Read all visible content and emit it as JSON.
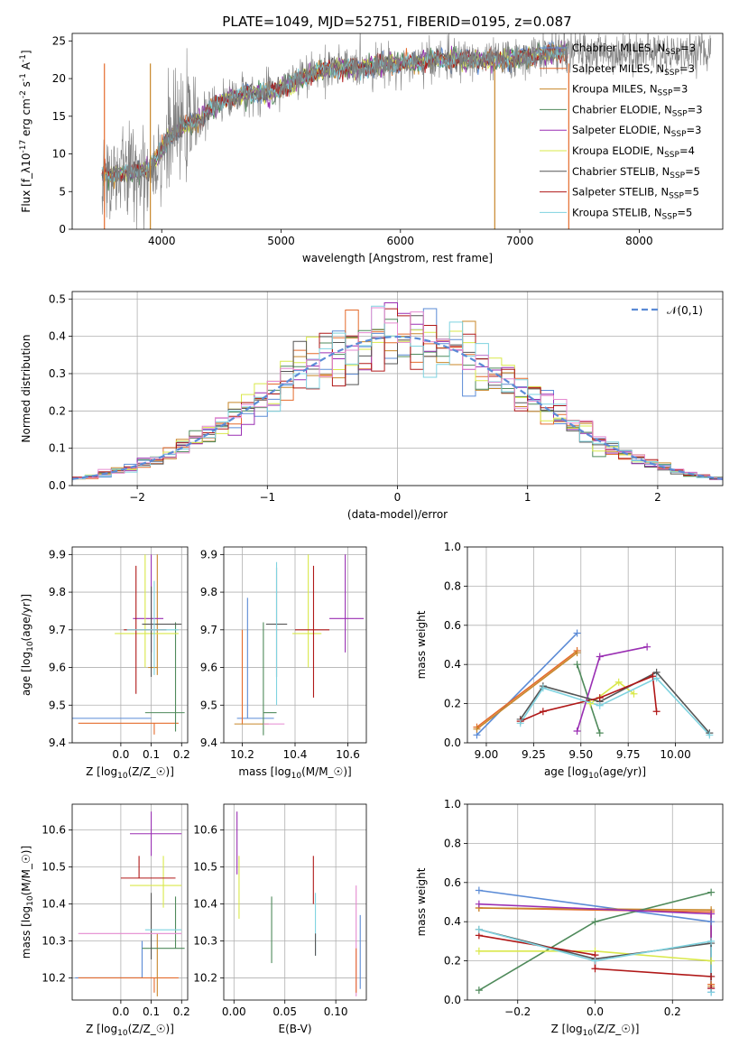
{
  "title": "PLATE=1049, MJD=52751, FIBERID=0195, z=0.087",
  "colors": {
    "chabrier_miles": "#5b8bd6",
    "salpeter_miles": "#e46b2c",
    "kroupa_miles": "#c8872a",
    "chabrier_elodie": "#4f8a5b",
    "salpeter_elodie": "#9a2fb3",
    "kroupa_elodie": "#d9e84a",
    "chabrier_stelib": "#555555",
    "salpeter_stelib": "#b01818",
    "kroupa_stelib": "#7fd3e0",
    "normal": "#5b8bd6",
    "pink": "#e58ad0"
  },
  "legend_spectrum": [
    "Chabrier MILES, N$_{SSP}$=3",
    "Salpeter MILES, N$_{SSP}$=3",
    "Kroupa MILES, N$_{SSP}$=3",
    "Chabrier ELODIE, N$_{SSP}$=3",
    "Salpeter ELODIE, N$_{SSP}$=3",
    "Kroupa ELODIE, N$_{SSP}$=4",
    "Chabrier STELIB, N$_{SSP}$=5",
    "Salpeter STELIB, N$_{SSP}$=5",
    "Kroupa STELIB, N$_{SSP}$=5"
  ],
  "chart_data": [
    {
      "id": "spectrum",
      "type": "line",
      "xlabel": "wavelength [Angstrom, rest frame]",
      "ylabel": "Flux [f$_\\lambda$10$^{-17}$ erg cm$^{-2}$ s$^{-1}$ A$^{-1}$]",
      "xlim": [
        3250,
        8700
      ],
      "ylim": [
        0,
        26
      ],
      "xticks": [
        4000,
        5000,
        6000,
        7000,
        8000
      ],
      "yticks": [
        0,
        5,
        10,
        15,
        20,
        25
      ],
      "continuum": {
        "x": [
          3500,
          3700,
          3900,
          4100,
          4300,
          4500,
          4700,
          4900,
          5100,
          5300,
          5500,
          5700,
          5900,
          6100,
          6300,
          6500,
          6700,
          6900,
          7100,
          7300,
          7500
        ],
        "y": [
          7,
          7.5,
          8,
          13,
          14.5,
          17,
          18,
          18,
          19.5,
          21,
          21.5,
          21.5,
          22,
          22,
          22.5,
          22.5,
          22.5,
          22.5,
          23,
          23.5,
          23.5
        ]
      }
    },
    {
      "id": "residuals",
      "type": "line",
      "xlabel": "(data-model)/error",
      "ylabel": "Normed distribution",
      "xlim": [
        -2.5,
        2.5
      ],
      "ylim": [
        0,
        0.52
      ],
      "xticks": [
        -2,
        -1,
        0,
        1,
        2
      ],
      "yticks": [
        0.0,
        0.1,
        0.2,
        0.3,
        0.4,
        0.5
      ],
      "legend": "$\\mathcal{N}(0,1)$",
      "bin_width": 0.1
    },
    {
      "id": "age_vs_Z",
      "type": "scatter",
      "xlabel": "Z [log$_{10}$(Z/Z$_\\odot$)]",
      "ylabel": "age  [log$_{10}$(age/yr)]",
      "xlim": [
        -0.16,
        0.22
      ],
      "ylim": [
        9.4,
        9.92
      ],
      "xticks": [
        0.0,
        0.1,
        0.2
      ],
      "yticks": [
        9.4,
        9.5,
        9.6,
        9.7,
        9.8,
        9.9
      ],
      "points": [
        {
          "c": "chabrier_miles",
          "x": 0.07,
          "xerr": [
            0.24,
            0.03
          ],
          "y": 9.465,
          "yerr": [
            0.0,
            0.0
          ]
        },
        {
          "c": "salpeter_miles",
          "x": 0.11,
          "xerr": [
            0.25,
            0.08
          ],
          "y": 9.452,
          "yerr": [
            0.03,
            0.0
          ]
        },
        {
          "c": "kroupa_miles",
          "x": 0.12,
          "xerr": [
            0.03,
            0.0
          ],
          "y": 9.6,
          "yerr": [
            0.02,
            0.3
          ]
        },
        {
          "c": "chabrier_elodie",
          "x": 0.18,
          "xerr": [
            0.1,
            0.03
          ],
          "y": 9.48,
          "yerr": [
            0.05,
            0.24
          ]
        },
        {
          "c": "salpeter_elodie",
          "x": 0.1,
          "xerr": [
            0.06,
            0.04
          ],
          "y": 9.73,
          "yerr": [
            0.09,
            0.17
          ]
        },
        {
          "c": "kroupa_elodie",
          "x": 0.08,
          "xerr": [
            0.1,
            0.11
          ],
          "y": 9.69,
          "yerr": [
            0.09,
            0.21
          ]
        },
        {
          "c": "chabrier_stelib",
          "x": 0.1,
          "xerr": [
            0.03,
            0.1
          ],
          "y": 9.715,
          "yerr": [
            0.14,
            0.1
          ]
        },
        {
          "c": "salpeter_stelib",
          "x": 0.05,
          "xerr": [
            0.04,
            0.1
          ],
          "y": 9.7,
          "yerr": [
            0.17,
            0.17
          ]
        },
        {
          "c": "kroupa_stelib",
          "x": 0.11,
          "xerr": [
            0.09,
            0.08
          ],
          "y": 9.7,
          "yerr": [
            0.12,
            0.13
          ]
        }
      ]
    },
    {
      "id": "age_vs_mass",
      "type": "scatter",
      "xlabel": "mass [log$_{10}$(M/M$_\\odot$)]",
      "ylabel": "",
      "xlim": [
        10.13,
        10.67
      ],
      "ylim": [
        9.4,
        9.92
      ],
      "xticks": [
        10.2,
        10.4,
        10.6
      ],
      "yticks": [
        9.4,
        9.5,
        9.6,
        9.7,
        9.8,
        9.9
      ],
      "points": [
        {
          "c": "chabrier_miles",
          "x": 10.22,
          "xerr": [
            0.04,
            0.1
          ],
          "y": 9.465,
          "yerr": [
            0.0,
            0.32
          ]
        },
        {
          "c": "salpeter_miles",
          "x": 10.2,
          "xerr": [
            0.0,
            0.0
          ],
          "y": 9.45,
          "yerr": [
            0.0,
            0.25
          ]
        },
        {
          "c": "kroupa_miles",
          "x": 10.2,
          "xerr": [
            0.03,
            0.1
          ],
          "y": 9.45,
          "yerr": [
            0.0,
            0.0
          ]
        },
        {
          "c": "chabrier_elodie",
          "x": 10.28,
          "xerr": [
            0.0,
            0.05
          ],
          "y": 9.48,
          "yerr": [
            0.06,
            0.24
          ]
        },
        {
          "c": "salpeter_elodie",
          "x": 10.59,
          "xerr": [
            0.06,
            0.07
          ],
          "y": 9.73,
          "yerr": [
            0.09,
            0.17
          ]
        },
        {
          "c": "kroupa_elodie",
          "x": 10.45,
          "xerr": [
            0.06,
            0.05
          ],
          "y": 9.69,
          "yerr": [
            0.09,
            0.21
          ]
        },
        {
          "c": "chabrier_stelib",
          "x": 10.33,
          "xerr": [
            0.04,
            0.04
          ],
          "y": 9.715,
          "yerr": [
            0.14,
            0.15
          ]
        },
        {
          "c": "salpeter_stelib",
          "x": 10.47,
          "xerr": [
            0.07,
            0.06
          ],
          "y": 9.7,
          "yerr": [
            0.18,
            0.17
          ]
        },
        {
          "c": "kroupa_stelib",
          "x": 10.33,
          "xerr": [
            0.0,
            0.0
          ],
          "y": 9.7,
          "yerr": [
            0.2,
            0.18
          ]
        },
        {
          "c": "pink",
          "x": 10.32,
          "xerr": [
            0.04,
            0.04
          ],
          "y": 9.45,
          "yerr": [
            0.0,
            0.0
          ]
        }
      ]
    },
    {
      "id": "mass_weight_vs_age",
      "type": "line",
      "xlabel": "age  [log$_{10}$(age/yr)]",
      "ylabel": "mass weight",
      "xlim": [
        8.9,
        10.25
      ],
      "ylim": [
        0.0,
        1.0
      ],
      "xticks": [
        9.0,
        9.25,
        9.5,
        9.75,
        10.0
      ],
      "yticks": [
        0.0,
        0.2,
        0.4,
        0.6,
        0.8,
        1.0
      ],
      "series": [
        {
          "c": "chabrier_miles",
          "x": [
            8.95,
            9.48
          ],
          "y": [
            0.04,
            0.56
          ]
        },
        {
          "c": "salpeter_miles",
          "x": [
            8.95,
            9.48
          ],
          "y": [
            0.08,
            0.47
          ]
        },
        {
          "c": "kroupa_miles",
          "x": [
            8.95,
            9.48
          ],
          "y": [
            0.07,
            0.46
          ]
        },
        {
          "c": "chabrier_elodie",
          "x": [
            9.48,
            9.6
          ],
          "y": [
            0.4,
            0.05
          ]
        },
        {
          "c": "salpeter_elodie",
          "x": [
            9.48,
            9.6,
            9.85
          ],
          "y": [
            0.06,
            0.44,
            0.49
          ]
        },
        {
          "c": "kroupa_elodie",
          "x": [
            9.55,
            9.7,
            9.78
          ],
          "y": [
            0.2,
            0.31,
            0.25
          ]
        },
        {
          "c": "chabrier_stelib",
          "x": [
            9.18,
            9.3,
            9.6,
            9.9,
            10.18
          ],
          "y": [
            0.12,
            0.29,
            0.21,
            0.36,
            0.05
          ]
        },
        {
          "c": "salpeter_stelib",
          "x": [
            9.18,
            9.3,
            9.6,
            9.88,
            9.9
          ],
          "y": [
            0.11,
            0.16,
            0.23,
            0.34,
            0.16
          ]
        },
        {
          "c": "kroupa_stelib",
          "x": [
            9.18,
            9.3,
            9.6,
            9.9,
            10.18
          ],
          "y": [
            0.1,
            0.28,
            0.19,
            0.33,
            0.04
          ]
        }
      ]
    },
    {
      "id": "mass_vs_Z",
      "type": "scatter",
      "xlabel": "Z [log$_{10}$(Z/Z$_\\odot$)]",
      "ylabel": "mass [log$_{10}$(M/M$_\\odot$)]",
      "xlim": [
        -0.16,
        0.22
      ],
      "ylim": [
        10.14,
        10.67
      ],
      "xticks": [
        0.0,
        0.1,
        0.2
      ],
      "yticks": [
        10.2,
        10.3,
        10.4,
        10.5,
        10.6
      ],
      "points": [
        {
          "c": "chabrier_miles",
          "x": 0.07,
          "xerr": [
            0.22,
            0.0
          ],
          "y": 10.2,
          "yerr": [
            0.0,
            0.1
          ]
        },
        {
          "c": "salpeter_miles",
          "x": 0.11,
          "xerr": [
            0.25,
            0.08
          ],
          "y": 10.2,
          "yerr": [
            0.04,
            0.0
          ]
        },
        {
          "c": "kroupa_miles",
          "x": 0.12,
          "xerr": [
            0.0,
            0.0
          ],
          "y": 10.2,
          "yerr": [
            0.05,
            0.12
          ]
        },
        {
          "c": "chabrier_elodie",
          "x": 0.18,
          "xerr": [
            0.11,
            0.03
          ],
          "y": 10.28,
          "yerr": [
            0.0,
            0.14
          ]
        },
        {
          "c": "salpeter_elodie",
          "x": 0.1,
          "xerr": [
            0.07,
            0.1
          ],
          "y": 10.59,
          "yerr": [
            0.06,
            0.06
          ]
        },
        {
          "c": "kroupa_elodie",
          "x": 0.14,
          "xerr": [
            0.11,
            0.06
          ],
          "y": 10.45,
          "yerr": [
            0.06,
            0.08
          ]
        },
        {
          "c": "chabrier_stelib",
          "x": 0.1,
          "xerr": [
            0.0,
            0.0
          ],
          "y": 10.33,
          "yerr": [
            0.08,
            0.1
          ]
        },
        {
          "c": "salpeter_stelib",
          "x": 0.06,
          "xerr": [
            0.06,
            0.12
          ],
          "y": 10.47,
          "yerr": [
            0.0,
            0.06
          ]
        },
        {
          "c": "kroupa_stelib",
          "x": 0.14,
          "xerr": [
            0.06,
            0.06
          ],
          "y": 10.33,
          "yerr": [
            0.0,
            0.0
          ]
        },
        {
          "c": "pink",
          "x": 0.06,
          "xerr": [
            0.2,
            0.14
          ],
          "y": 10.32,
          "yerr": [
            0.0,
            0.0
          ]
        }
      ]
    },
    {
      "id": "mass_vs_EBV",
      "type": "scatter",
      "xlabel": "E(B-V)",
      "ylabel": "",
      "xlim": [
        -0.01,
        0.13
      ],
      "ylim": [
        10.14,
        10.67
      ],
      "xticks": [
        0.0,
        0.05,
        0.1
      ],
      "yticks": [
        10.2,
        10.3,
        10.4,
        10.5,
        10.6
      ],
      "points": [
        {
          "c": "salpeter_elodie",
          "x": 0.003,
          "xerr": [
            0,
            0
          ],
          "y": 10.6,
          "yerr": [
            0.12,
            0.05
          ]
        },
        {
          "c": "kroupa_elodie",
          "x": 0.005,
          "xerr": [
            0,
            0
          ],
          "y": 10.45,
          "yerr": [
            0.09,
            0.08
          ]
        },
        {
          "c": "chabrier_elodie",
          "x": 0.037,
          "xerr": [
            0,
            0
          ],
          "y": 10.33,
          "yerr": [
            0.09,
            0.09
          ]
        },
        {
          "c": "salpeter_stelib",
          "x": 0.078,
          "xerr": [
            0,
            0
          ],
          "y": 10.47,
          "yerr": [
            0.07,
            0.06
          ]
        },
        {
          "c": "kroupa_stelib",
          "x": 0.08,
          "xerr": [
            0,
            0
          ],
          "y": 10.33,
          "yerr": [
            0.07,
            0.1
          ]
        },
        {
          "c": "chabrier_stelib",
          "x": 0.08,
          "xerr": [
            0,
            0
          ],
          "y": 10.3,
          "yerr": [
            0.04,
            0.02
          ]
        },
        {
          "c": "pink",
          "x": 0.12,
          "xerr": [
            0,
            0
          ],
          "y": 10.35,
          "yerr": [
            0.2,
            0.1
          ]
        },
        {
          "c": "salpeter_miles",
          "x": 0.12,
          "xerr": [
            0,
            0
          ],
          "y": 10.2,
          "yerr": [
            0.04,
            0.08
          ]
        },
        {
          "c": "chabrier_miles",
          "x": 0.124,
          "xerr": [
            0,
            0
          ],
          "y": 10.3,
          "yerr": [
            0.13,
            0.07
          ]
        }
      ]
    },
    {
      "id": "mass_weight_vs_Z",
      "type": "line",
      "xlabel": "Z [log$_{10}$(Z/Z$_\\odot$)]",
      "ylabel": "mass weight",
      "xlim": [
        -0.33,
        0.33
      ],
      "ylim": [
        0.0,
        1.0
      ],
      "xticks": [
        -0.2,
        0.0,
        0.2
      ],
      "yticks": [
        0.0,
        0.2,
        0.4,
        0.6,
        0.8,
        1.0
      ],
      "series": [
        {
          "c": "chabrier_miles",
          "x": [
            -0.3,
            0.3,
            0.3
          ],
          "y": [
            0.56,
            0.4,
            0.04
          ]
        },
        {
          "c": "salpeter_miles",
          "x": [
            -0.3,
            0.3,
            0.3
          ],
          "y": [
            0.47,
            0.45,
            0.08
          ]
        },
        {
          "c": "kroupa_miles",
          "x": [
            -0.3,
            0.3,
            0.3
          ],
          "y": [
            0.47,
            0.46,
            0.07
          ]
        },
        {
          "c": "chabrier_elodie",
          "x": [
            -0.3,
            0.0,
            0.3
          ],
          "y": [
            0.05,
            0.4,
            0.55
          ]
        },
        {
          "c": "salpeter_elodie",
          "x": [
            -0.3,
            0.3,
            0.3
          ],
          "y": [
            0.49,
            0.44,
            0.06
          ]
        },
        {
          "c": "kroupa_elodie",
          "x": [
            -0.3,
            0.0,
            0.3
          ],
          "y": [
            0.25,
            0.25,
            0.2
          ]
        },
        {
          "c": "chabrier_stelib",
          "x": [
            -0.3,
            0.0,
            0.3,
            0.3
          ],
          "y": [
            0.36,
            0.21,
            0.29,
            0.12
          ]
        },
        {
          "c": "salpeter_stelib",
          "x": [
            -0.3,
            0.0,
            0.0,
            0.3,
            0.3
          ],
          "y": [
            0.33,
            0.23,
            0.16,
            0.12,
            0.06
          ]
        },
        {
          "c": "kroupa_stelib",
          "x": [
            -0.3,
            0.0,
            0.3,
            0.3
          ],
          "y": [
            0.36,
            0.2,
            0.3,
            0.04
          ]
        }
      ]
    }
  ]
}
